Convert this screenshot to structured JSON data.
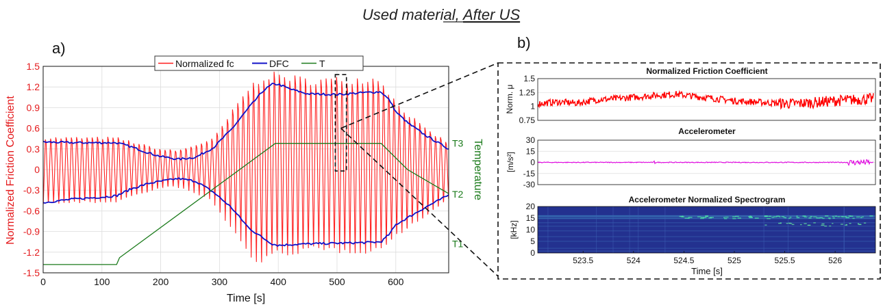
{
  "figure": {
    "title_prefix": "Used material, ",
    "title_underlined": "After US",
    "panel_a_label": "a)",
    "panel_b_label": "b)"
  },
  "chart_data": [
    {
      "id": "panel-a",
      "type": "line",
      "xlabel": "Time [s]",
      "ylabel": "Normalized Friction Coefficient",
      "ylabel_right": "Temperature",
      "xlim": [
        0,
        690
      ],
      "ylim": [
        -1.5,
        1.5
      ],
      "x_ticks": [
        0,
        100,
        200,
        300,
        400,
        500,
        600
      ],
      "y_ticks": [
        "-1.5",
        "-1.2",
        "-0.9",
        "-0.6",
        "-0.3",
        "0",
        "0.3",
        "0.6",
        "0.9",
        "1.2",
        "1.5"
      ],
      "y_right_ticks": [
        "T1",
        "T2",
        "T3"
      ],
      "grid": true,
      "legend": [
        "Normalized fc",
        "DFC",
        "T"
      ],
      "legend_position": "top",
      "colors": {
        "fc": "#ff1a1a",
        "dfc": "#1010c8",
        "temp": "#1a7a1a",
        "axis_left": "#e41a1c",
        "axis_right": "#1a7a1a"
      },
      "series": [
        {
          "name": "DFC",
          "x": [
            0,
            50,
            100,
            125,
            150,
            180,
            200,
            230,
            260,
            290,
            320,
            350,
            375,
            390,
            400,
            420,
            450,
            500,
            550,
            575,
            590,
            600,
            620,
            650,
            690
          ],
          "upper": [
            0.4,
            0.39,
            0.39,
            0.39,
            0.33,
            0.24,
            0.19,
            0.15,
            0.18,
            0.32,
            0.58,
            0.9,
            1.15,
            1.24,
            1.24,
            1.17,
            1.1,
            1.09,
            1.12,
            1.13,
            1.0,
            0.84,
            0.68,
            0.5,
            0.3
          ],
          "lower": [
            -0.48,
            -0.43,
            -0.4,
            -0.38,
            -0.28,
            -0.2,
            -0.17,
            -0.13,
            -0.17,
            -0.33,
            -0.55,
            -0.85,
            -1.0,
            -1.08,
            -1.1,
            -1.09,
            -1.08,
            -1.07,
            -1.06,
            -1.05,
            -0.93,
            -0.8,
            -0.7,
            -0.55,
            -0.37
          ]
        },
        {
          "name": "Normalized fc",
          "cycles": 78,
          "envelope_x": [
            0,
            125,
            200,
            230,
            290,
            350,
            375,
            400,
            450,
            575,
            600,
            650,
            690
          ],
          "envelope_upper": [
            0.47,
            0.47,
            0.3,
            0.28,
            0.45,
            1.2,
            1.38,
            1.4,
            1.32,
            1.35,
            1.0,
            0.6,
            0.4
          ],
          "envelope_lower": [
            -0.5,
            -0.48,
            -0.28,
            -0.25,
            -0.45,
            -1.2,
            -1.4,
            -1.25,
            -1.2,
            -1.2,
            -1.0,
            -0.7,
            -0.45
          ]
        },
        {
          "name": "T",
          "x": [
            0,
            125,
            130,
            395,
            405,
            575,
            620,
            690
          ],
          "y": [
            -1.38,
            -1.38,
            -1.28,
            0.38,
            0.38,
            0.38,
            0.0,
            -0.35
          ]
        }
      ],
      "annotation": {
        "type": "dashed-box",
        "x_range": [
          497,
          516
        ],
        "y_range": [
          -0.02,
          1.38
        ]
      }
    },
    {
      "id": "panel-b-friction",
      "type": "line",
      "title": "Normalized Friction Coefficient",
      "ylabel": "Norm. μ",
      "xlim": [
        523.05,
        526.4
      ],
      "ylim": [
        0.75,
        1.5
      ],
      "y_ticks": [
        "0.75",
        "1",
        "1.25",
        "1.5"
      ],
      "grid": true,
      "color": "#ff0000"
    },
    {
      "id": "panel-b-accel",
      "type": "line",
      "title": "Accelerometer",
      "ylabel": "[m/s²]",
      "xlim": [
        523.05,
        526.4
      ],
      "ylim": [
        -30,
        30
      ],
      "y_ticks": [
        "-30",
        "-15",
        "0",
        "15",
        "30"
      ],
      "grid": true,
      "color": "#e000e0"
    },
    {
      "id": "panel-b-spectrogram",
      "type": "heatmap",
      "title": "Accelerometer Normalized Spectrogram",
      "xlabel": "Time [s]",
      "ylabel": "[kHz]",
      "xlim": [
        523.05,
        526.4
      ],
      "ylim": [
        0,
        20
      ],
      "x_ticks": [
        "523.5",
        "524",
        "524.5",
        "525",
        "525.5",
        "526"
      ],
      "y_ticks": [
        "0",
        "5",
        "10",
        "15",
        "20"
      ],
      "colors": {
        "base": "#23318f",
        "high": "#4ad6a8"
      }
    }
  ]
}
